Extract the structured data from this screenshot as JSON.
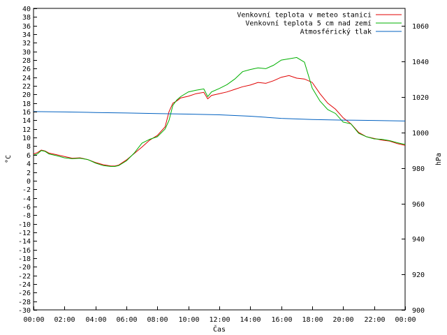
{
  "chart_data": {
    "type": "line",
    "xlabel": "Čas",
    "ylabel_left": "°C",
    "ylabel_right": "hPa",
    "ylim_left": [
      -30,
      40
    ],
    "ylim_right": [
      900,
      1070
    ],
    "xlim": [
      0,
      24
    ],
    "x_ticks": [
      "00:00",
      "02:00",
      "04:00",
      "06:00",
      "08:00",
      "10:00",
      "12:00",
      "14:00",
      "16:00",
      "18:00",
      "20:00",
      "22:00",
      "00:00"
    ],
    "y_ticks_left": [
      -30,
      -28,
      -26,
      -24,
      -22,
      -20,
      -18,
      -16,
      -14,
      -12,
      -10,
      -8,
      -6,
      -4,
      -2,
      0,
      2,
      4,
      6,
      8,
      10,
      12,
      14,
      16,
      18,
      20,
      22,
      24,
      26,
      28,
      30,
      32,
      34,
      36,
      38,
      40
    ],
    "y_ticks_right": [
      900,
      920,
      940,
      960,
      980,
      1000,
      1020,
      1040,
      1060
    ],
    "grid": false,
    "legend_position": "top-right",
    "series": [
      {
        "name": "Venkovní teplota v meteo stanici",
        "color": "#e00000",
        "axis": "left",
        "x": [
          0,
          0.25,
          0.5,
          0.75,
          1,
          1.5,
          2,
          2.5,
          3,
          3.5,
          4,
          4.5,
          5,
          5.25,
          5.5,
          6,
          6.5,
          7,
          7.5,
          8,
          8.5,
          8.75,
          9,
          9.25,
          9.5,
          10,
          10.5,
          11,
          11.25,
          11.5,
          12,
          12.5,
          13,
          13.5,
          14,
          14.5,
          15,
          15.5,
          16,
          16.5,
          17,
          17.5,
          18,
          18.5,
          19,
          19.5,
          20,
          20.5,
          21,
          21.5,
          22,
          22.5,
          23,
          23.5,
          24
        ],
        "values": [
          6.2,
          6.5,
          7.1,
          6.9,
          6.4,
          6.0,
          5.6,
          5.2,
          5.3,
          4.9,
          4.2,
          3.7,
          3.4,
          3.4,
          3.6,
          4.8,
          6.3,
          7.8,
          9.4,
          10.5,
          12.5,
          16.0,
          18.0,
          18.5,
          19.2,
          19.6,
          20.2,
          20.5,
          19.0,
          19.8,
          20.2,
          20.6,
          21.2,
          21.8,
          22.2,
          22.8,
          22.6,
          23.2,
          24.0,
          24.4,
          23.8,
          23.6,
          22.8,
          20.2,
          18.0,
          16.6,
          14.6,
          13.2,
          11.2,
          10.2,
          9.8,
          9.4,
          9.2,
          8.6,
          8.2
        ]
      },
      {
        "name": "Venkovní teplota 5 cm nad zemí",
        "color": "#00b000",
        "axis": "left",
        "x": [
          0,
          0.25,
          0.5,
          0.75,
          1,
          1.5,
          2,
          2.5,
          3,
          3.5,
          4,
          4.5,
          5,
          5.25,
          5.5,
          6,
          6.5,
          7,
          7.5,
          8,
          8.5,
          8.75,
          9,
          9.25,
          9.5,
          10,
          10.5,
          11,
          11.25,
          11.5,
          12,
          12.5,
          13,
          13.5,
          14,
          14.5,
          15,
          15.5,
          16,
          16.5,
          17,
          17.5,
          18,
          18.5,
          19,
          19.5,
          20,
          20.5,
          21,
          21.5,
          22,
          22.5,
          23,
          23.5,
          24
        ],
        "values": [
          5.9,
          6.2,
          7.0,
          6.8,
          6.2,
          5.8,
          5.3,
          5.1,
          5.2,
          4.9,
          4.1,
          3.5,
          3.3,
          3.3,
          3.5,
          4.6,
          6.4,
          8.7,
          9.6,
          10.2,
          12.0,
          14.0,
          17.5,
          18.7,
          19.5,
          20.6,
          21.0,
          21.3,
          19.5,
          20.6,
          21.4,
          22.3,
          23.6,
          25.3,
          25.8,
          26.2,
          26.0,
          26.8,
          28.0,
          28.3,
          28.6,
          27.5,
          21.5,
          18.5,
          16.5,
          15.6,
          13.6,
          13.2,
          11.0,
          10.2,
          9.7,
          9.6,
          9.3,
          8.8,
          8.4
        ]
      },
      {
        "name": "Atmosférický tlak",
        "color": "#0060c0",
        "axis": "right",
        "x": [
          0,
          2,
          4,
          6,
          8,
          10,
          12,
          14,
          16,
          18,
          20,
          22,
          24
        ],
        "values": [
          1011.8,
          1011.6,
          1011.3,
          1011.0,
          1010.7,
          1010.4,
          1010.0,
          1009.2,
          1008.0,
          1007.3,
          1007.0,
          1006.8,
          1006.5
        ]
      }
    ]
  }
}
